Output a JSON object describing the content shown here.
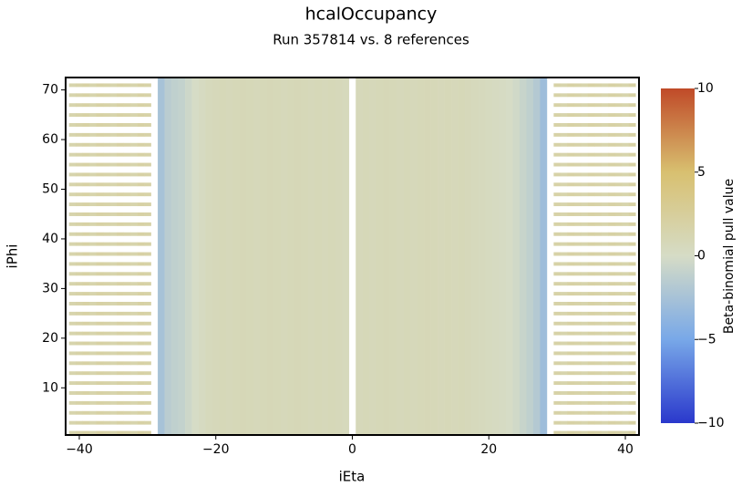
{
  "chart_data": {
    "type": "heatmap",
    "title": "hcalOccupancy",
    "subtitle": "Run 357814 vs. 8 references",
    "x_label": "iEta",
    "y_label": "iPhi",
    "colorbar_label": "Beta-binomial pull value",
    "x": [
      -41,
      -40,
      -39,
      -38,
      -37,
      -36,
      -35,
      -34,
      -33,
      -32,
      -31,
      -30,
      -29,
      -28,
      -27,
      -26,
      -25,
      -24,
      -23,
      -22,
      -21,
      -20,
      -19,
      -18,
      -17,
      -16,
      -15,
      -14,
      -13,
      -12,
      -11,
      -10,
      -9,
      -8,
      -7,
      -6,
      -5,
      -4,
      -3,
      -2,
      -1,
      0,
      1,
      2,
      3,
      4,
      5,
      6,
      7,
      8,
      9,
      10,
      11,
      12,
      13,
      14,
      15,
      16,
      17,
      18,
      19,
      20,
      21,
      22,
      23,
      24,
      25,
      26,
      27,
      28,
      29,
      30,
      31,
      32,
      33,
      34,
      35,
      36,
      37,
      38,
      39,
      40,
      41
    ],
    "values": [
      1.5,
      1.8,
      2,
      1.5,
      2,
      1.8,
      1.5,
      2,
      1.8,
      1.5,
      2,
      1.8,
      null,
      -2.5,
      -1.5,
      -1.2,
      -1,
      -0.5,
      0,
      0.3,
      0.6,
      0.7,
      0.8,
      0.7,
      0.8,
      0.9,
      0.8,
      0.7,
      0.8,
      0.9,
      0.8,
      0.7,
      0.8,
      0.9,
      0.8,
      0.7,
      0.8,
      0.7,
      0.8,
      0.7,
      0.6,
      null,
      0.7,
      0.8,
      0.7,
      0.8,
      0.9,
      0.8,
      0.7,
      0.8,
      0.7,
      0.8,
      0.9,
      0.8,
      0.7,
      0.8,
      0.7,
      0.8,
      0.7,
      0.6,
      0.5,
      0.4,
      0.3,
      0.2,
      0,
      -0.3,
      -0.8,
      -1.2,
      -1.8,
      -3,
      null,
      1.8,
      1.5,
      2,
      1.8,
      1.5,
      2,
      1.8,
      1.5,
      2,
      1.8,
      1.5,
      2
    ],
    "xlim": [
      -42,
      42
    ],
    "ylim": [
      0.5,
      72.5
    ],
    "xticks": [
      {
        "value": -40,
        "label": "−40"
      },
      {
        "value": -20,
        "label": "−20"
      },
      0,
      20,
      40
    ],
    "yticks": [
      10,
      20,
      30,
      40,
      50,
      60,
      70
    ],
    "zlim": [
      -10,
      10
    ],
    "zticks": [
      {
        "value": -10,
        "label": "−10"
      },
      {
        "value": -5,
        "label": "−5"
      },
      0,
      5,
      10
    ],
    "colormap": [
      "#2a38cc",
      "#78a8e8",
      "#d6dcc6",
      "#d8c070",
      "#c04a28"
    ]
  }
}
